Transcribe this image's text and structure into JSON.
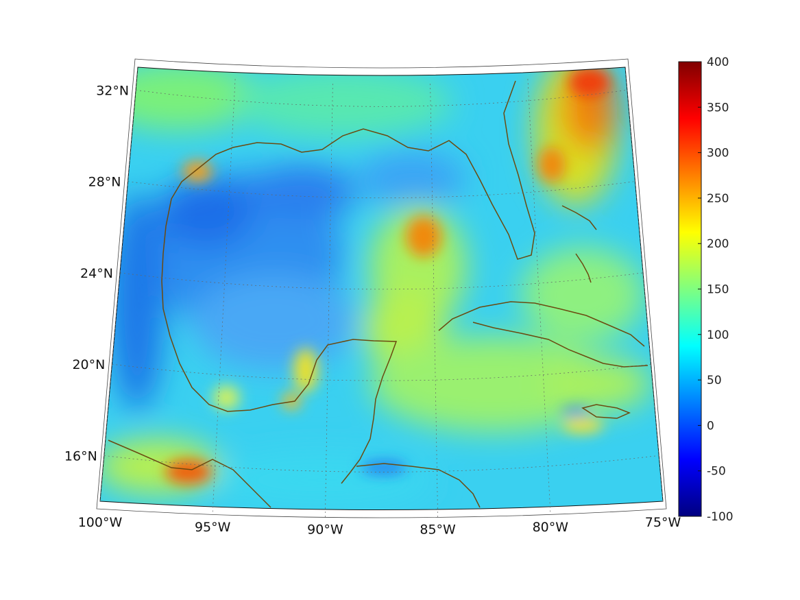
{
  "map": {
    "projection": "conic",
    "extent": {
      "lon": [
        -100,
        -75
      ],
      "lat": [
        14,
        33
      ]
    },
    "grid": true,
    "coastline_color": "#6b4a10",
    "lon_ticks": [
      {
        "value": -100,
        "label": "100°W"
      },
      {
        "value": -95,
        "label": "95°W"
      },
      {
        "value": -90,
        "label": "90°W"
      },
      {
        "value": -85,
        "label": "85°W"
      },
      {
        "value": -80,
        "label": "80°W"
      },
      {
        "value": -75,
        "label": "75°W"
      }
    ],
    "lat_ticks": [
      {
        "value": 16,
        "label": "16°N"
      },
      {
        "value": 20,
        "label": "20°N"
      },
      {
        "value": 24,
        "label": "24°N"
      },
      {
        "value": 28,
        "label": "28°N"
      },
      {
        "value": 32,
        "label": "32°N"
      }
    ],
    "colormap": "jet"
  },
  "colorbar": {
    "min": -100,
    "max": 400,
    "ticks": [
      {
        "value": 400,
        "label": "400"
      },
      {
        "value": 350,
        "label": "350"
      },
      {
        "value": 300,
        "label": "300"
      },
      {
        "value": 250,
        "label": "250"
      },
      {
        "value": 200,
        "label": "200"
      },
      {
        "value": 150,
        "label": "150"
      },
      {
        "value": 100,
        "label": "100"
      },
      {
        "value": 50,
        "label": "50"
      },
      {
        "value": 0,
        "label": "0"
      },
      {
        "value": -50,
        "label": "-50"
      },
      {
        "value": -100,
        "label": "-100"
      }
    ]
  }
}
